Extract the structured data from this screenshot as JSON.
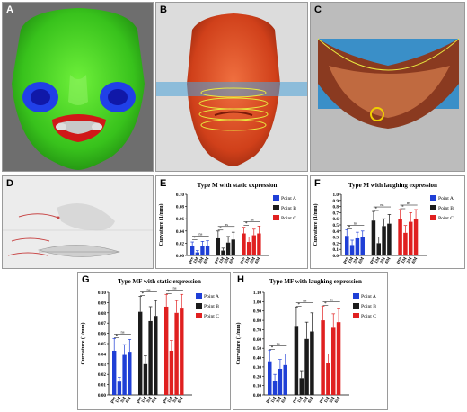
{
  "panels": {
    "A": {
      "label": "A"
    },
    "B": {
      "label": "B"
    },
    "C": {
      "label": "C"
    },
    "D": {
      "label": "D"
    },
    "E": {
      "label": "E"
    },
    "F": {
      "label": "F"
    },
    "G": {
      "label": "G"
    },
    "H": {
      "label": "H"
    }
  },
  "colors": {
    "point_a": "#1f3fd6",
    "point_b": "#1b1b1b",
    "point_c": "#e02020",
    "face_green": "#3fcf1f",
    "face_orange": "#d8502a",
    "plane_blue": "#4aa3d8"
  },
  "chart_data": [
    {
      "panel": "E",
      "type": "bar",
      "title": "Type M with static expression",
      "ylabel": "Curvature (1/mm)",
      "ylim": [
        0,
        0.1
      ],
      "yticks": [
        "0.00",
        "0.02",
        "0.04",
        "0.06",
        "0.08",
        "0.10"
      ],
      "categories": [
        "pre",
        "1M",
        "3M",
        "6M"
      ],
      "series": [
        {
          "name": "Point A",
          "values": [
            0.016,
            0.005,
            0.016,
            0.016
          ],
          "errors": [
            0.006,
            0.003,
            0.007,
            0.008
          ]
        },
        {
          "name": "Point B",
          "values": [
            0.028,
            0.008,
            0.021,
            0.026
          ],
          "errors": [
            0.012,
            0.004,
            0.01,
            0.012
          ]
        },
        {
          "name": "Point C",
          "values": [
            0.036,
            0.022,
            0.033,
            0.036
          ],
          "errors": [
            0.01,
            0.008,
            0.01,
            0.012
          ]
        }
      ],
      "sig_label": "ns",
      "star_label": "*",
      "legend": "right"
    },
    {
      "panel": "F",
      "type": "bar",
      "title": "Type M with laughing expression",
      "ylabel": "Curvature (1/mm)",
      "ylim": [
        0,
        1.0
      ],
      "yticks": [
        "0.0",
        "0.1",
        "0.2",
        "0.3",
        "0.4",
        "0.5",
        "0.6",
        "0.7",
        "0.8",
        "0.9",
        "1.0"
      ],
      "categories": [
        "pre",
        "1M",
        "3M",
        "6M"
      ],
      "series": [
        {
          "name": "Point A",
          "values": [
            0.32,
            0.17,
            0.28,
            0.3
          ],
          "errors": [
            0.1,
            0.08,
            0.1,
            0.1
          ]
        },
        {
          "name": "Point B",
          "values": [
            0.57,
            0.2,
            0.48,
            0.52
          ],
          "errors": [
            0.15,
            0.1,
            0.12,
            0.15
          ]
        },
        {
          "name": "Point C",
          "values": [
            0.6,
            0.37,
            0.55,
            0.6
          ],
          "errors": [
            0.15,
            0.12,
            0.15,
            0.15
          ]
        }
      ],
      "sig_label": "ns",
      "star_label": "*",
      "legend": "right"
    },
    {
      "panel": "G",
      "type": "bar",
      "title": "Type MF with static expression",
      "ylabel": "Curvature (1/mm)",
      "ylim": [
        0,
        0.1
      ],
      "yticks": [
        "0.00",
        "0.01",
        "0.02",
        "0.03",
        "0.04",
        "0.05",
        "0.06",
        "0.07",
        "0.08",
        "0.09",
        "0.10"
      ],
      "categories": [
        "pre",
        "1M",
        "3M",
        "6M"
      ],
      "series": [
        {
          "name": "Point A",
          "values": [
            0.043,
            0.013,
            0.039,
            0.042
          ],
          "errors": [
            0.012,
            0.004,
            0.01,
            0.012
          ]
        },
        {
          "name": "Point B",
          "values": [
            0.081,
            0.03,
            0.072,
            0.077
          ],
          "errors": [
            0.015,
            0.008,
            0.014,
            0.015
          ]
        },
        {
          "name": "Point C",
          "values": [
            0.086,
            0.043,
            0.08,
            0.085
          ],
          "errors": [
            0.012,
            0.01,
            0.012,
            0.013
          ]
        }
      ],
      "sig_label": "ns",
      "star_label": "*",
      "legend": "right"
    },
    {
      "panel": "H",
      "type": "bar",
      "title": "Type MF with laughing expression",
      "ylabel": "Curvature (1/mm)",
      "ylim": [
        0,
        1.1
      ],
      "yticks": [
        "0.00",
        "0.10",
        "0.20",
        "0.30",
        "0.40",
        "0.50",
        "0.60",
        "0.70",
        "0.80",
        "0.90",
        "1.00",
        "1.10"
      ],
      "categories": [
        "pre",
        "1M",
        "3M",
        "6M"
      ],
      "series": [
        {
          "name": "Point A",
          "values": [
            0.36,
            0.15,
            0.28,
            0.32
          ],
          "errors": [
            0.12,
            0.07,
            0.1,
            0.12
          ]
        },
        {
          "name": "Point B",
          "values": [
            0.74,
            0.18,
            0.6,
            0.68
          ],
          "errors": [
            0.2,
            0.08,
            0.18,
            0.2
          ]
        },
        {
          "name": "Point C",
          "values": [
            0.8,
            0.34,
            0.72,
            0.78
          ],
          "errors": [
            0.15,
            0.1,
            0.15,
            0.15
          ]
        }
      ],
      "sig_label": "ns",
      "star_label": "*",
      "legend": "right"
    }
  ]
}
